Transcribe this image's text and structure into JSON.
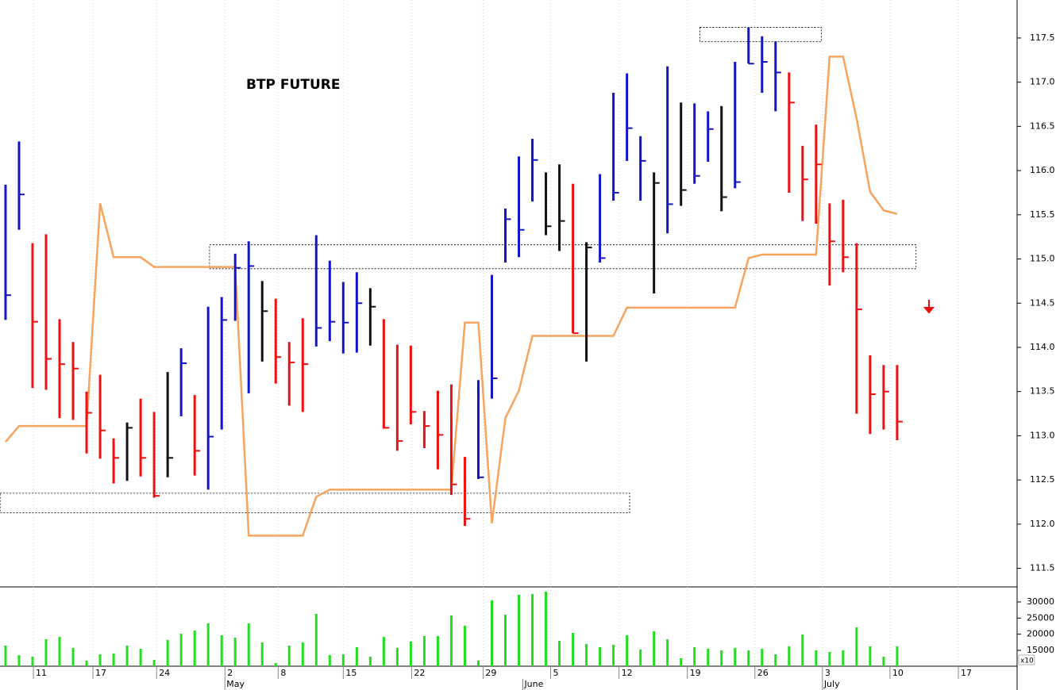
{
  "chart_data": [
    {
      "type": "ohlc",
      "title": "BTP FUTURE",
      "x": [
        0,
        1,
        2,
        3,
        4,
        5,
        6,
        7,
        8,
        9,
        10,
        11,
        12,
        13,
        14,
        15,
        16,
        17,
        18,
        19,
        20,
        21,
        22,
        23,
        24,
        25,
        26,
        27,
        28,
        29,
        30,
        31,
        32,
        33,
        34,
        35,
        36,
        37,
        38,
        39,
        40,
        41,
        42,
        43,
        44,
        45,
        46,
        47,
        48,
        49,
        50,
        51,
        52,
        53,
        54,
        55,
        56,
        57,
        58,
        59,
        60,
        61,
        62,
        63,
        64,
        65,
        66
      ],
      "high": [
        115.84,
        116.33,
        115.18,
        115.28,
        114.32,
        114.06,
        113.5,
        113.69,
        112.97,
        113.15,
        113.42,
        113.27,
        113.72,
        113.99,
        113.46,
        114.46,
        114.57,
        115.06,
        115.2,
        114.75,
        114.55,
        114.06,
        114.33,
        115.27,
        114.98,
        114.74,
        114.85,
        114.67,
        114.32,
        114.03,
        114.02,
        113.28,
        113.51,
        113.58,
        112.76,
        113.63,
        114.82,
        115.57,
        116.16,
        116.36,
        115.98,
        116.07,
        115.85,
        115.19,
        115.96,
        116.88,
        117.1,
        116.39,
        115.98,
        117.18,
        116.77,
        116.76,
        116.67,
        116.73,
        117.23,
        117.62,
        117.52,
        117.46,
        117.11,
        116.28,
        116.52,
        115.63,
        115.67,
        115.18,
        113.91,
        113.8,
        113.8
      ],
      "low": [
        114.31,
        115.33,
        113.54,
        113.52,
        113.2,
        113.18,
        112.8,
        112.74,
        112.46,
        112.49,
        112.54,
        112.3,
        112.53,
        113.22,
        112.55,
        112.39,
        113.07,
        114.3,
        113.48,
        113.84,
        113.59,
        113.34,
        113.27,
        114.01,
        114.07,
        113.93,
        113.94,
        114.02,
        113.08,
        112.83,
        113.13,
        112.86,
        112.62,
        112.33,
        111.98,
        112.51,
        113.42,
        114.96,
        115.02,
        115.65,
        115.27,
        115.09,
        114.16,
        113.84,
        114.96,
        115.66,
        116.11,
        115.66,
        114.61,
        115.29,
        115.6,
        115.85,
        116.1,
        115.54,
        115.8,
        117.21,
        116.88,
        116.67,
        115.75,
        115.43,
        115.4,
        114.7,
        114.85,
        113.25,
        113.02,
        113.07,
        112.95
      ],
      "close": [
        114.59,
        115.73,
        114.29,
        113.87,
        113.81,
        113.76,
        113.26,
        113.06,
        112.75,
        113.09,
        112.75,
        112.32,
        112.75,
        113.82,
        112.83,
        112.99,
        114.31,
        114.9,
        114.92,
        114.41,
        113.89,
        113.83,
        113.81,
        114.22,
        114.29,
        114.28,
        114.5,
        114.46,
        113.09,
        112.94,
        113.27,
        113.11,
        113.01,
        112.45,
        112.06,
        112.53,
        113.65,
        115.45,
        115.33,
        116.12,
        115.37,
        115.43,
        114.16,
        115.13,
        115.01,
        115.75,
        116.48,
        116.11,
        115.86,
        115.62,
        115.78,
        115.94,
        116.47,
        115.7,
        115.87,
        117.21,
        117.23,
        117.11,
        116.77,
        115.9,
        116.07,
        115.2,
        115.02,
        114.43,
        113.47,
        113.5,
        113.16
      ],
      "colors": [
        "#1414c8",
        "#1414c8",
        "#ee1111",
        "#ee1111",
        "#ee1111",
        "#ee1111",
        "#ee1111",
        "#ee1111",
        "#ee1111",
        "#111111",
        "#ee1111",
        "#ee1111",
        "#111111",
        "#1414c8",
        "#ee1111",
        "#1414c8",
        "#1414c8",
        "#1414c8",
        "#1414c8",
        "#111111",
        "#ee1111",
        "#ee1111",
        "#ee1111",
        "#1414c8",
        "#1414c8",
        "#1414c8",
        "#1414c8",
        "#111111",
        "#ee1111",
        "#ee1111",
        "#ee1111",
        "#ee1111",
        "#ee1111",
        "#ee1111",
        "#ee1111",
        "#1414c8",
        "#1414c8",
        "#1414c8",
        "#1414c8",
        "#1414c8",
        "#111111",
        "#111111",
        "#ee1111",
        "#111111",
        "#1414c8",
        "#1414c8",
        "#1414c8",
        "#1414c8",
        "#111111",
        "#1414c8",
        "#111111",
        "#1414c8",
        "#1414c8",
        "#111111",
        "#1414c8",
        "#1414c8",
        "#1414c8",
        "#1414c8",
        "#ee1111",
        "#ee1111",
        "#ee1111",
        "#ee1111",
        "#ee1111",
        "#ee1111",
        "#ee1111",
        "#ee1111",
        "#ee1111"
      ],
      "line": {
        "color": "#f6a45e",
        "x": [
          0,
          1,
          6,
          7,
          8,
          10,
          11,
          17,
          18,
          22,
          23,
          24,
          33,
          34,
          35,
          36,
          37,
          38,
          39,
          45,
          46,
          54,
          55,
          56,
          60,
          61,
          62,
          63,
          64,
          65,
          66
        ],
        "values": [
          112.93,
          113.11,
          113.11,
          115.63,
          115.02,
          115.02,
          114.91,
          114.91,
          111.87,
          111.87,
          112.31,
          112.39,
          112.39,
          114.28,
          114.28,
          112.01,
          113.2,
          113.51,
          114.13,
          114.13,
          114.45,
          114.45,
          115.01,
          115.05,
          115.05,
          117.29,
          117.29,
          116.59,
          115.76,
          115.55,
          115.51
        ]
      },
      "zones": [
        {
          "x": [
            51.4,
            60.4
          ],
          "y": [
            117.46,
            117.62
          ]
        },
        {
          "x": [
            15.1,
            67.4
          ],
          "y": [
            114.89,
            115.16
          ]
        },
        {
          "x": [
            -0.4,
            46.2
          ],
          "y": [
            112.13,
            112.35
          ]
        }
      ],
      "xlim": [
        -0.41,
        74.88
      ],
      "ylim": [
        111.29,
        117.93
      ],
      "yticks": [
        {
          "value": 111.5,
          "label": "111.5"
        },
        {
          "value": 112,
          "label": "112.0"
        },
        112.5,
        {
          "value": 113,
          "label": "113.0"
        },
        113.5,
        {
          "value": 114,
          "label": "114.0"
        },
        114.5,
        {
          "value": 115,
          "label": "115.0"
        },
        115.5,
        {
          "value": 116,
          "label": "116.0"
        },
        116.5,
        {
          "value": 117,
          "label": "117.0"
        },
        117.5
      ],
      "xticks": [
        {
          "value": 2.06,
          "label": "11"
        },
        {
          "value": 6.47,
          "label": "17"
        },
        {
          "value": 11.18,
          "label": "24"
        },
        {
          "value": 16.24,
          "label": "2"
        },
        {
          "value": 20.18,
          "label": "8"
        },
        {
          "value": 25,
          "label": "15"
        },
        {
          "value": 30.06,
          "label": "22"
        },
        {
          "value": 35.35,
          "label": "29"
        },
        {
          "value": 40.35,
          "label": "5"
        },
        {
          "value": 45.41,
          "label": "12"
        },
        {
          "value": 50.47,
          "label": "19"
        },
        {
          "value": 55.47,
          "label": "26"
        },
        {
          "value": 60.47,
          "label": "3"
        },
        {
          "value": 65.47,
          "label": "10"
        },
        {
          "value": 70.53,
          "label": "17"
        }
      ],
      "month_labels": [
        {
          "value": 16.24,
          "label": "May"
        },
        {
          "value": 38.29,
          "label": "June"
        },
        {
          "value": 60.47,
          "label": "July"
        }
      ],
      "grid": true
    },
    {
      "type": "bar",
      "unit_label": "x10",
      "color": "#22dd22",
      "x": [
        0,
        1,
        2,
        3,
        4,
        5,
        6,
        7,
        8,
        9,
        10,
        11,
        12,
        13,
        14,
        15,
        16,
        17,
        18,
        19,
        20,
        21,
        22,
        23,
        24,
        25,
        26,
        27,
        28,
        29,
        30,
        31,
        32,
        33,
        34,
        35,
        36,
        37,
        38,
        39,
        40,
        41,
        42,
        43,
        44,
        45,
        46,
        47,
        48,
        49,
        50,
        51,
        52,
        53,
        54,
        55,
        56,
        57,
        58,
        59,
        60,
        61,
        62,
        63,
        64,
        65,
        66
      ],
      "values": [
        16480,
        13520,
        13030,
        18440,
        19180,
        15740,
        11800,
        13770,
        14020,
        16480,
        15490,
        12050,
        18200,
        20170,
        21150,
        23360,
        19670,
        18940,
        23360,
        17460,
        11060,
        16480,
        17460,
        26320,
        13520,
        13770,
        15980,
        13030,
        19180,
        15740,
        17710,
        19430,
        19430,
        25820,
        22630,
        11800,
        30500,
        26070,
        32220,
        32470,
        33200,
        17950,
        20410,
        16970,
        15980,
        16720,
        19670,
        15250,
        20900,
        18440,
        12540,
        15980,
        15490,
        15000,
        15740,
        15000,
        15490,
        13770,
        16230,
        19920,
        15000,
        14510,
        15000,
        22130,
        16230,
        13030,
        16230
      ],
      "ylim": [
        10080,
        34670
      ],
      "yticks": [
        15000,
        20000,
        25000,
        30000
      ]
    }
  ]
}
